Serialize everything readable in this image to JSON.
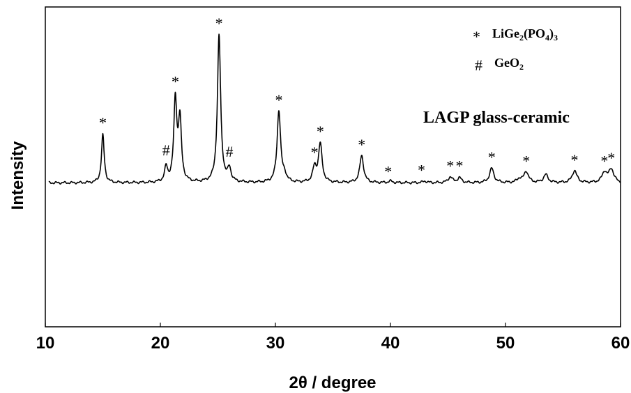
{
  "chart_data": {
    "type": "line",
    "xlabel": "2θ / degree",
    "ylabel": "Intensity",
    "xlim": [
      10,
      60
    ],
    "ylim": [
      0,
      100
    ],
    "x_ticks": [
      "10",
      "20",
      "30",
      "40",
      "50",
      "60"
    ],
    "grid": false,
    "legend_position": "top-right",
    "baseline": 45,
    "peaks": [
      {
        "x": 15.0,
        "h": 15
      },
      {
        "x": 20.5,
        "h": 4.5
      },
      {
        "x": 21.3,
        "h": 25.5
      },
      {
        "x": 21.7,
        "h": 19
      },
      {
        "x": 25.1,
        "h": 46
      },
      {
        "x": 26.0,
        "h": 4
      },
      {
        "x": 30.3,
        "h": 22.5
      },
      {
        "x": 30.8,
        "h": 2
      },
      {
        "x": 33.4,
        "h": 4.5
      },
      {
        "x": 33.9,
        "h": 12
      },
      {
        "x": 37.5,
        "h": 8.5
      },
      {
        "x": 40.0,
        "h": 0.5
      },
      {
        "x": 43.0,
        "h": 0.5
      },
      {
        "x": 45.2,
        "h": 1.8
      },
      {
        "x": 46.0,
        "h": 1.5
      },
      {
        "x": 48.8,
        "h": 4.5
      },
      {
        "x": 51.2,
        "h": 1.2
      },
      {
        "x": 51.8,
        "h": 3.5
      },
      {
        "x": 53.5,
        "h": 2.5
      },
      {
        "x": 56.0,
        "h": 3.8
      },
      {
        "x": 58.6,
        "h": 3.2
      },
      {
        "x": 59.2,
        "h": 4.2
      }
    ],
    "markers": [
      {
        "x": 15.0,
        "symbol": "*"
      },
      {
        "x": 20.5,
        "symbol": "#"
      },
      {
        "x": 21.3,
        "symbol": "*"
      },
      {
        "x": 25.1,
        "symbol": "*"
      },
      {
        "x": 26.0,
        "symbol": "#"
      },
      {
        "x": 30.3,
        "symbol": "*"
      },
      {
        "x": 33.4,
        "symbol": "*"
      },
      {
        "x": 33.9,
        "symbol": "*"
      },
      {
        "x": 37.5,
        "symbol": "*"
      },
      {
        "x": 39.8,
        "symbol": "*"
      },
      {
        "x": 42.7,
        "symbol": "*"
      },
      {
        "x": 45.2,
        "symbol": "*"
      },
      {
        "x": 46.0,
        "symbol": "*"
      },
      {
        "x": 48.8,
        "symbol": "*"
      },
      {
        "x": 51.8,
        "symbol": "*"
      },
      {
        "x": 56.0,
        "symbol": "*"
      },
      {
        "x": 58.6,
        "symbol": "*"
      },
      {
        "x": 59.2,
        "symbol": "*"
      }
    ],
    "legend": [
      {
        "symbol": "*",
        "text": "LiGe",
        "sub1": "2",
        "text2": "(PO",
        "sub2": "4",
        "text3": ")",
        "sub3": "3"
      },
      {
        "symbol": "#",
        "text": "GeO",
        "sub1": "2",
        "text2": "",
        "sub2": "",
        "text3": "",
        "sub3": ""
      }
    ],
    "annotation": "LAGP glass-ceramic"
  }
}
